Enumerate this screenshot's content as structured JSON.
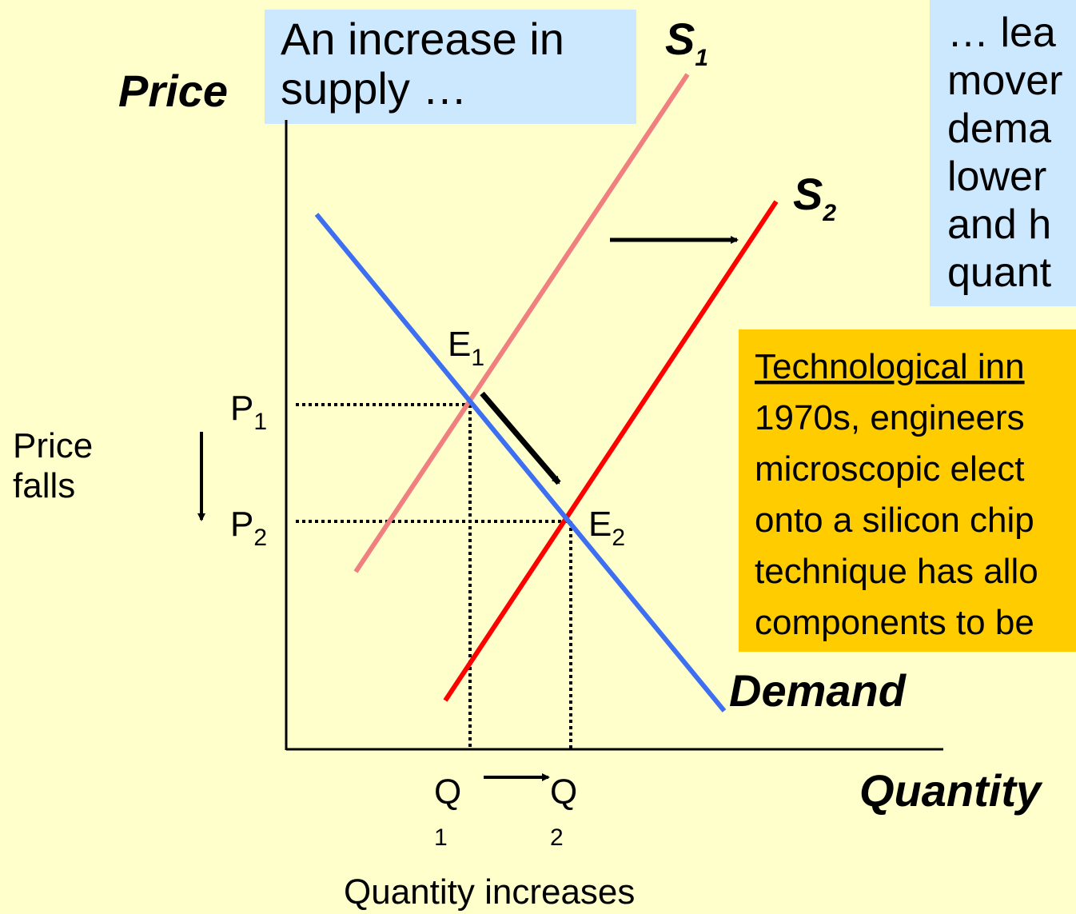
{
  "axes": {
    "y_label": "Price",
    "x_label": "Quantity"
  },
  "curves": {
    "s1": {
      "label": "S",
      "sub": "1"
    },
    "s2": {
      "label": "S",
      "sub": "2"
    },
    "demand": {
      "label": "Demand"
    }
  },
  "points": {
    "e1": {
      "label": "E",
      "sub": "1"
    },
    "e2": {
      "label": "E",
      "sub": "2"
    },
    "p1": {
      "label": "P",
      "sub": "1"
    },
    "p2": {
      "label": "P",
      "sub": "2"
    },
    "q1": {
      "label": "Q",
      "sub": "1"
    },
    "q2": {
      "label": "Q",
      "sub": "2"
    }
  },
  "notes": {
    "price_falls": [
      "Price",
      "falls"
    ],
    "quantity_increases": "Quantity increases",
    "increase_box": [
      "An increase in",
      "supply …"
    ],
    "result_box": [
      "… lea",
      "mover",
      "dema",
      "lower",
      "and h",
      "quant"
    ],
    "tech_box": {
      "heading": "Technological inn",
      "lines": [
        "1970s, engineers",
        "microscopic elect",
        "onto a silicon chip",
        "technique has allo",
        "components to be"
      ]
    }
  }
}
